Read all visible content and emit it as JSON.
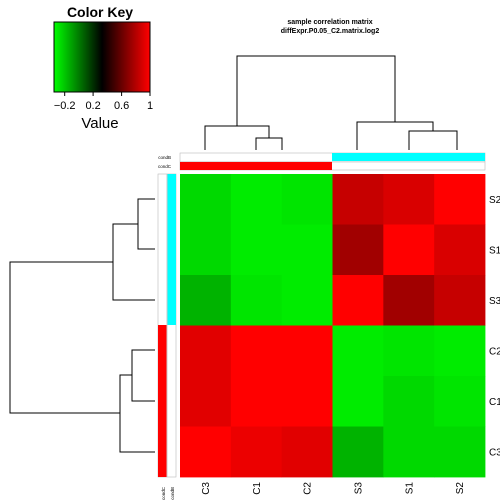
{
  "title_line1": "sample correlation matrix",
  "title_line2": "diffExpr.P0.05_C2.matrix.log2",
  "color_key": {
    "title": "Color Key",
    "axis_label": "Value",
    "ticks": [
      "−0.2",
      "0.2",
      "0.6",
      "1"
    ],
    "tick_values": [
      -0.2,
      0.2,
      0.6,
      1.0
    ],
    "range": [
      -0.35,
      1.0
    ],
    "low_color": "#00ff00",
    "mid_color": "#000000",
    "high_color": "#ff0000"
  },
  "annotation": {
    "labels": [
      "condB",
      "condC"
    ],
    "condB_color": "#00ffff",
    "condC_color": "#ff0000"
  },
  "chart_data": {
    "type": "heatmap",
    "title": "sample correlation matrix\ndiffExpr.P0.05_C2.matrix.log2",
    "columns": [
      "C3",
      "C1",
      "C2",
      "S3",
      "S1",
      "S2"
    ],
    "rows": [
      "S2",
      "S1",
      "S3",
      "C2",
      "C1",
      "C3"
    ],
    "column_groups": [
      "condC",
      "condC",
      "condC",
      "condB",
      "condB",
      "condB"
    ],
    "row_groups": [
      "condB",
      "condB",
      "condB",
      "condC",
      "condC",
      "condC"
    ],
    "values": [
      [
        -0.25,
        -0.3,
        -0.28,
        0.85,
        0.9,
        1.0
      ],
      [
        -0.25,
        -0.3,
        -0.3,
        0.75,
        1.0,
        0.9
      ],
      [
        -0.15,
        -0.28,
        -0.3,
        1.0,
        0.75,
        0.85
      ],
      [
        0.92,
        1.0,
        1.0,
        -0.3,
        -0.28,
        -0.3
      ],
      [
        0.92,
        1.0,
        1.0,
        -0.3,
        -0.25,
        -0.28
      ],
      [
        1.0,
        0.95,
        0.92,
        -0.15,
        -0.25,
        -0.25
      ]
    ],
    "value_range": [
      -0.35,
      1.0
    ],
    "legend": "top-left"
  }
}
